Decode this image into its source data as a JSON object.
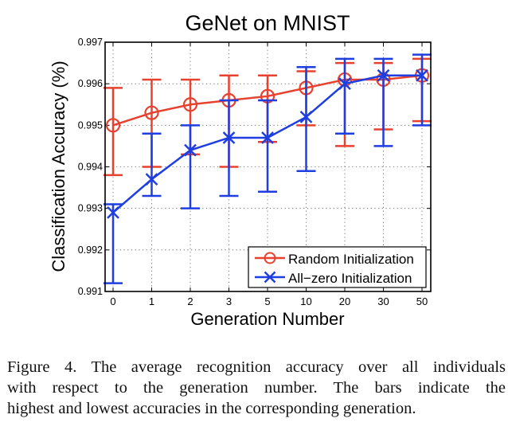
{
  "chart_data": {
    "type": "line",
    "title": "GeNet on MNIST",
    "xlabel": "Generation Number",
    "ylabel": "Classification Accuracy (%)",
    "categories": [
      "0",
      "1",
      "2",
      "3",
      "5",
      "10",
      "20",
      "30",
      "50"
    ],
    "ylim": [
      0.991,
      0.997
    ],
    "yticks": [
      "0.991",
      "0.992",
      "0.993",
      "0.994",
      "0.995",
      "0.996",
      "0.997"
    ],
    "ytick_values": [
      0.991,
      0.992,
      0.993,
      0.994,
      0.995,
      0.996,
      0.997
    ],
    "grid": true,
    "grid_style": "dotted",
    "legend_position": "bottom-right",
    "series": [
      {
        "name": "Random Initialization",
        "marker": "circle",
        "color": "#e8412f",
        "values": [
          0.995,
          0.9953,
          0.9955,
          0.9956,
          0.9957,
          0.9959,
          0.9961,
          0.9961,
          0.9962
        ],
        "upper": [
          0.9959,
          0.9961,
          0.9961,
          0.9962,
          0.9962,
          0.9963,
          0.9965,
          0.9965,
          0.9966
        ],
        "lower": [
          0.9938,
          0.994,
          0.9943,
          0.994,
          0.9946,
          0.995,
          0.9945,
          0.9949,
          0.9951
        ]
      },
      {
        "name": "All−zero Initialization",
        "marker": "x",
        "color": "#1f3ee0",
        "values": [
          0.9929,
          0.9937,
          0.9944,
          0.9947,
          0.9947,
          0.9952,
          0.996,
          0.9962,
          0.9962
        ],
        "upper": [
          0.9931,
          0.9948,
          0.995,
          0.9956,
          0.9956,
          0.9964,
          0.9966,
          0.9966,
          0.9967
        ],
        "lower": [
          0.9912,
          0.9933,
          0.993,
          0.9933,
          0.9934,
          0.9939,
          0.9948,
          0.9945,
          0.995
        ]
      }
    ]
  },
  "caption": {
    "lines": [
      "Figure 4.   The average recognition accuracy over all individuals",
      "with respect to the generation number.  The bars indicate the",
      "highest and lowest accuracies in the corresponding generation."
    ]
  }
}
